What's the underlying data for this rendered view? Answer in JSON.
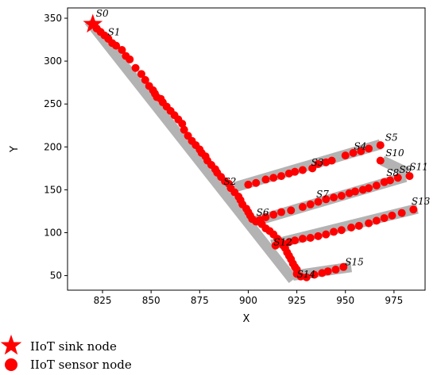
{
  "chart_data": {
    "type": "scatter",
    "title": "",
    "xlabel": "X",
    "ylabel": "Y",
    "xlim": [
      807,
      991
    ],
    "ylim": [
      33,
      362
    ],
    "xticks": [
      825,
      850,
      875,
      900,
      925,
      950,
      975
    ],
    "yticks": [
      50,
      100,
      150,
      200,
      250,
      300,
      350
    ],
    "grid": false,
    "legend_position": "below-left",
    "colors": {
      "node": "#ff0000",
      "corridor": "#b3b3b3",
      "axis": "#000000"
    },
    "legend": [
      {
        "marker": "star",
        "label": "IIoT sink node"
      },
      {
        "marker": "circle",
        "label": "IIoT sensor node"
      }
    ],
    "corridors": [
      [
        [
          818,
          347
        ],
        [
          923,
          45
        ]
      ],
      [
        [
          893,
          153
        ],
        [
          968,
          203
        ]
      ],
      [
        [
          903,
          113
        ],
        [
          981,
          165
        ]
      ],
      [
        [
          912,
          86
        ],
        [
          987,
          128
        ]
      ],
      [
        [
          923,
          50
        ],
        [
          953,
          60
        ]
      ],
      [
        [
          969,
          184
        ],
        [
          982,
          170
        ]
      ]
    ],
    "sink": {
      "x": 820,
      "y": 343
    },
    "sensors": [
      [
        822,
        338
      ],
      [
        824,
        334
      ],
      [
        826,
        330
      ],
      [
        828,
        326
      ],
      [
        830,
        321
      ],
      [
        832,
        318
      ],
      [
        835,
        313
      ],
      [
        837,
        306
      ],
      [
        839,
        302
      ],
      [
        842,
        292
      ],
      [
        845,
        285
      ],
      [
        847,
        278
      ],
      [
        849,
        271
      ],
      [
        851,
        266
      ],
      [
        852,
        262
      ],
      [
        853,
        258
      ],
      [
        855,
        256
      ],
      [
        856,
        252
      ],
      [
        858,
        247
      ],
      [
        860,
        242
      ],
      [
        862,
        237
      ],
      [
        864,
        232
      ],
      [
        866,
        227
      ],
      [
        867,
        220
      ],
      [
        869,
        213
      ],
      [
        871,
        207
      ],
      [
        873,
        202
      ],
      [
        875,
        197
      ],
      [
        876,
        193
      ],
      [
        878,
        189
      ],
      [
        879,
        184
      ],
      [
        881,
        179
      ],
      [
        883,
        174
      ],
      [
        884,
        170
      ],
      [
        886,
        165
      ],
      [
        888,
        160
      ],
      [
        890,
        157
      ],
      [
        891,
        152
      ],
      [
        893,
        147
      ],
      [
        895,
        142
      ],
      [
        896,
        138
      ],
      [
        897,
        133
      ],
      [
        899,
        128
      ],
      [
        900,
        124
      ],
      [
        901,
        120
      ],
      [
        902,
        116
      ],
      [
        904,
        113
      ],
      [
        907,
        110
      ],
      [
        909,
        105
      ],
      [
        911,
        102
      ],
      [
        913,
        98
      ],
      [
        915,
        93
      ],
      [
        916,
        90
      ],
      [
        918,
        85
      ],
      [
        919,
        82
      ],
      [
        920,
        77
      ],
      [
        921,
        73
      ],
      [
        922,
        69
      ],
      [
        923,
        64
      ],
      [
        924,
        60
      ],
      [
        925,
        57
      ],
      [
        925,
        52
      ],
      [
        927,
        49
      ],
      [
        900,
        156
      ],
      [
        904,
        158
      ],
      [
        909,
        162
      ],
      [
        913,
        164
      ],
      [
        917,
        166
      ],
      [
        921,
        169
      ],
      [
        924,
        171
      ],
      [
        928,
        173
      ],
      [
        933,
        175
      ],
      [
        936,
        180
      ],
      [
        940,
        182
      ],
      [
        943,
        184
      ],
      [
        950,
        190
      ],
      [
        954,
        193
      ],
      [
        958,
        195
      ],
      [
        962,
        198
      ],
      [
        968,
        202
      ],
      [
        906,
        115
      ],
      [
        909,
        118
      ],
      [
        913,
        121
      ],
      [
        917,
        124
      ],
      [
        922,
        126
      ],
      [
        928,
        130
      ],
      [
        932,
        133
      ],
      [
        936,
        136
      ],
      [
        940,
        139
      ],
      [
        944,
        141
      ],
      [
        948,
        143
      ],
      [
        952,
        146
      ],
      [
        955,
        148
      ],
      [
        959,
        150
      ],
      [
        962,
        152
      ],
      [
        966,
        155
      ],
      [
        970,
        159
      ],
      [
        973,
        161
      ],
      [
        977,
        164
      ],
      [
        983,
        166
      ],
      [
        968,
        184
      ],
      [
        914,
        85
      ],
      [
        918,
        87
      ],
      [
        921,
        89
      ],
      [
        924,
        91
      ],
      [
        928,
        93
      ],
      [
        932,
        94
      ],
      [
        936,
        96
      ],
      [
        940,
        98
      ],
      [
        944,
        101
      ],
      [
        948,
        103
      ],
      [
        953,
        106
      ],
      [
        957,
        108
      ],
      [
        962,
        111
      ],
      [
        966,
        114
      ],
      [
        970,
        117
      ],
      [
        974,
        120
      ],
      [
        979,
        123
      ],
      [
        985,
        127
      ],
      [
        930,
        48
      ],
      [
        934,
        51
      ],
      [
        938,
        53
      ],
      [
        941,
        55
      ],
      [
        945,
        57
      ],
      [
        949,
        60
      ]
    ],
    "labels": [
      {
        "text": "S0",
        "x": 820,
        "y": 352,
        "anchor": "start",
        "dx": 4
      },
      {
        "text": "S1",
        "x": 822,
        "y": 330,
        "anchor": "start",
        "dx": 14
      },
      {
        "text": "S2",
        "x": 889,
        "y": 156,
        "anchor": "start",
        "dx": -4
      },
      {
        "text": "S3",
        "x": 934,
        "y": 178,
        "anchor": "start",
        "dx": -4
      },
      {
        "text": "S4",
        "x": 956,
        "y": 197,
        "anchor": "start",
        "dx": -4
      },
      {
        "text": "S5",
        "x": 968,
        "y": 207,
        "anchor": "start",
        "dx": 6
      },
      {
        "text": "S6",
        "x": 905,
        "y": 120,
        "anchor": "start",
        "dx": -2
      },
      {
        "text": "S7",
        "x": 935,
        "y": 141,
        "anchor": "start",
        "dx": 0
      },
      {
        "text": "S8",
        "x": 967,
        "y": 166,
        "anchor": "start",
        "dx": 10
      },
      {
        "text": "S9",
        "x": 976,
        "y": 170,
        "anchor": "start",
        "dx": 4
      },
      {
        "text": "S10",
        "x": 969,
        "y": 189,
        "anchor": "start",
        "dx": 4
      },
      {
        "text": "S11",
        "x": 983,
        "y": 173,
        "anchor": "start",
        "dx": 0
      },
      {
        "text": "S12",
        "x": 913,
        "y": 85,
        "anchor": "start",
        "dx": 0
      },
      {
        "text": "S13",
        "x": 984,
        "y": 133,
        "anchor": "start",
        "dx": 0
      },
      {
        "text": "S14",
        "x": 925,
        "y": 48,
        "anchor": "start",
        "dx": 0
      },
      {
        "text": "S15",
        "x": 949,
        "y": 62,
        "anchor": "start",
        "dx": 2
      }
    ]
  }
}
